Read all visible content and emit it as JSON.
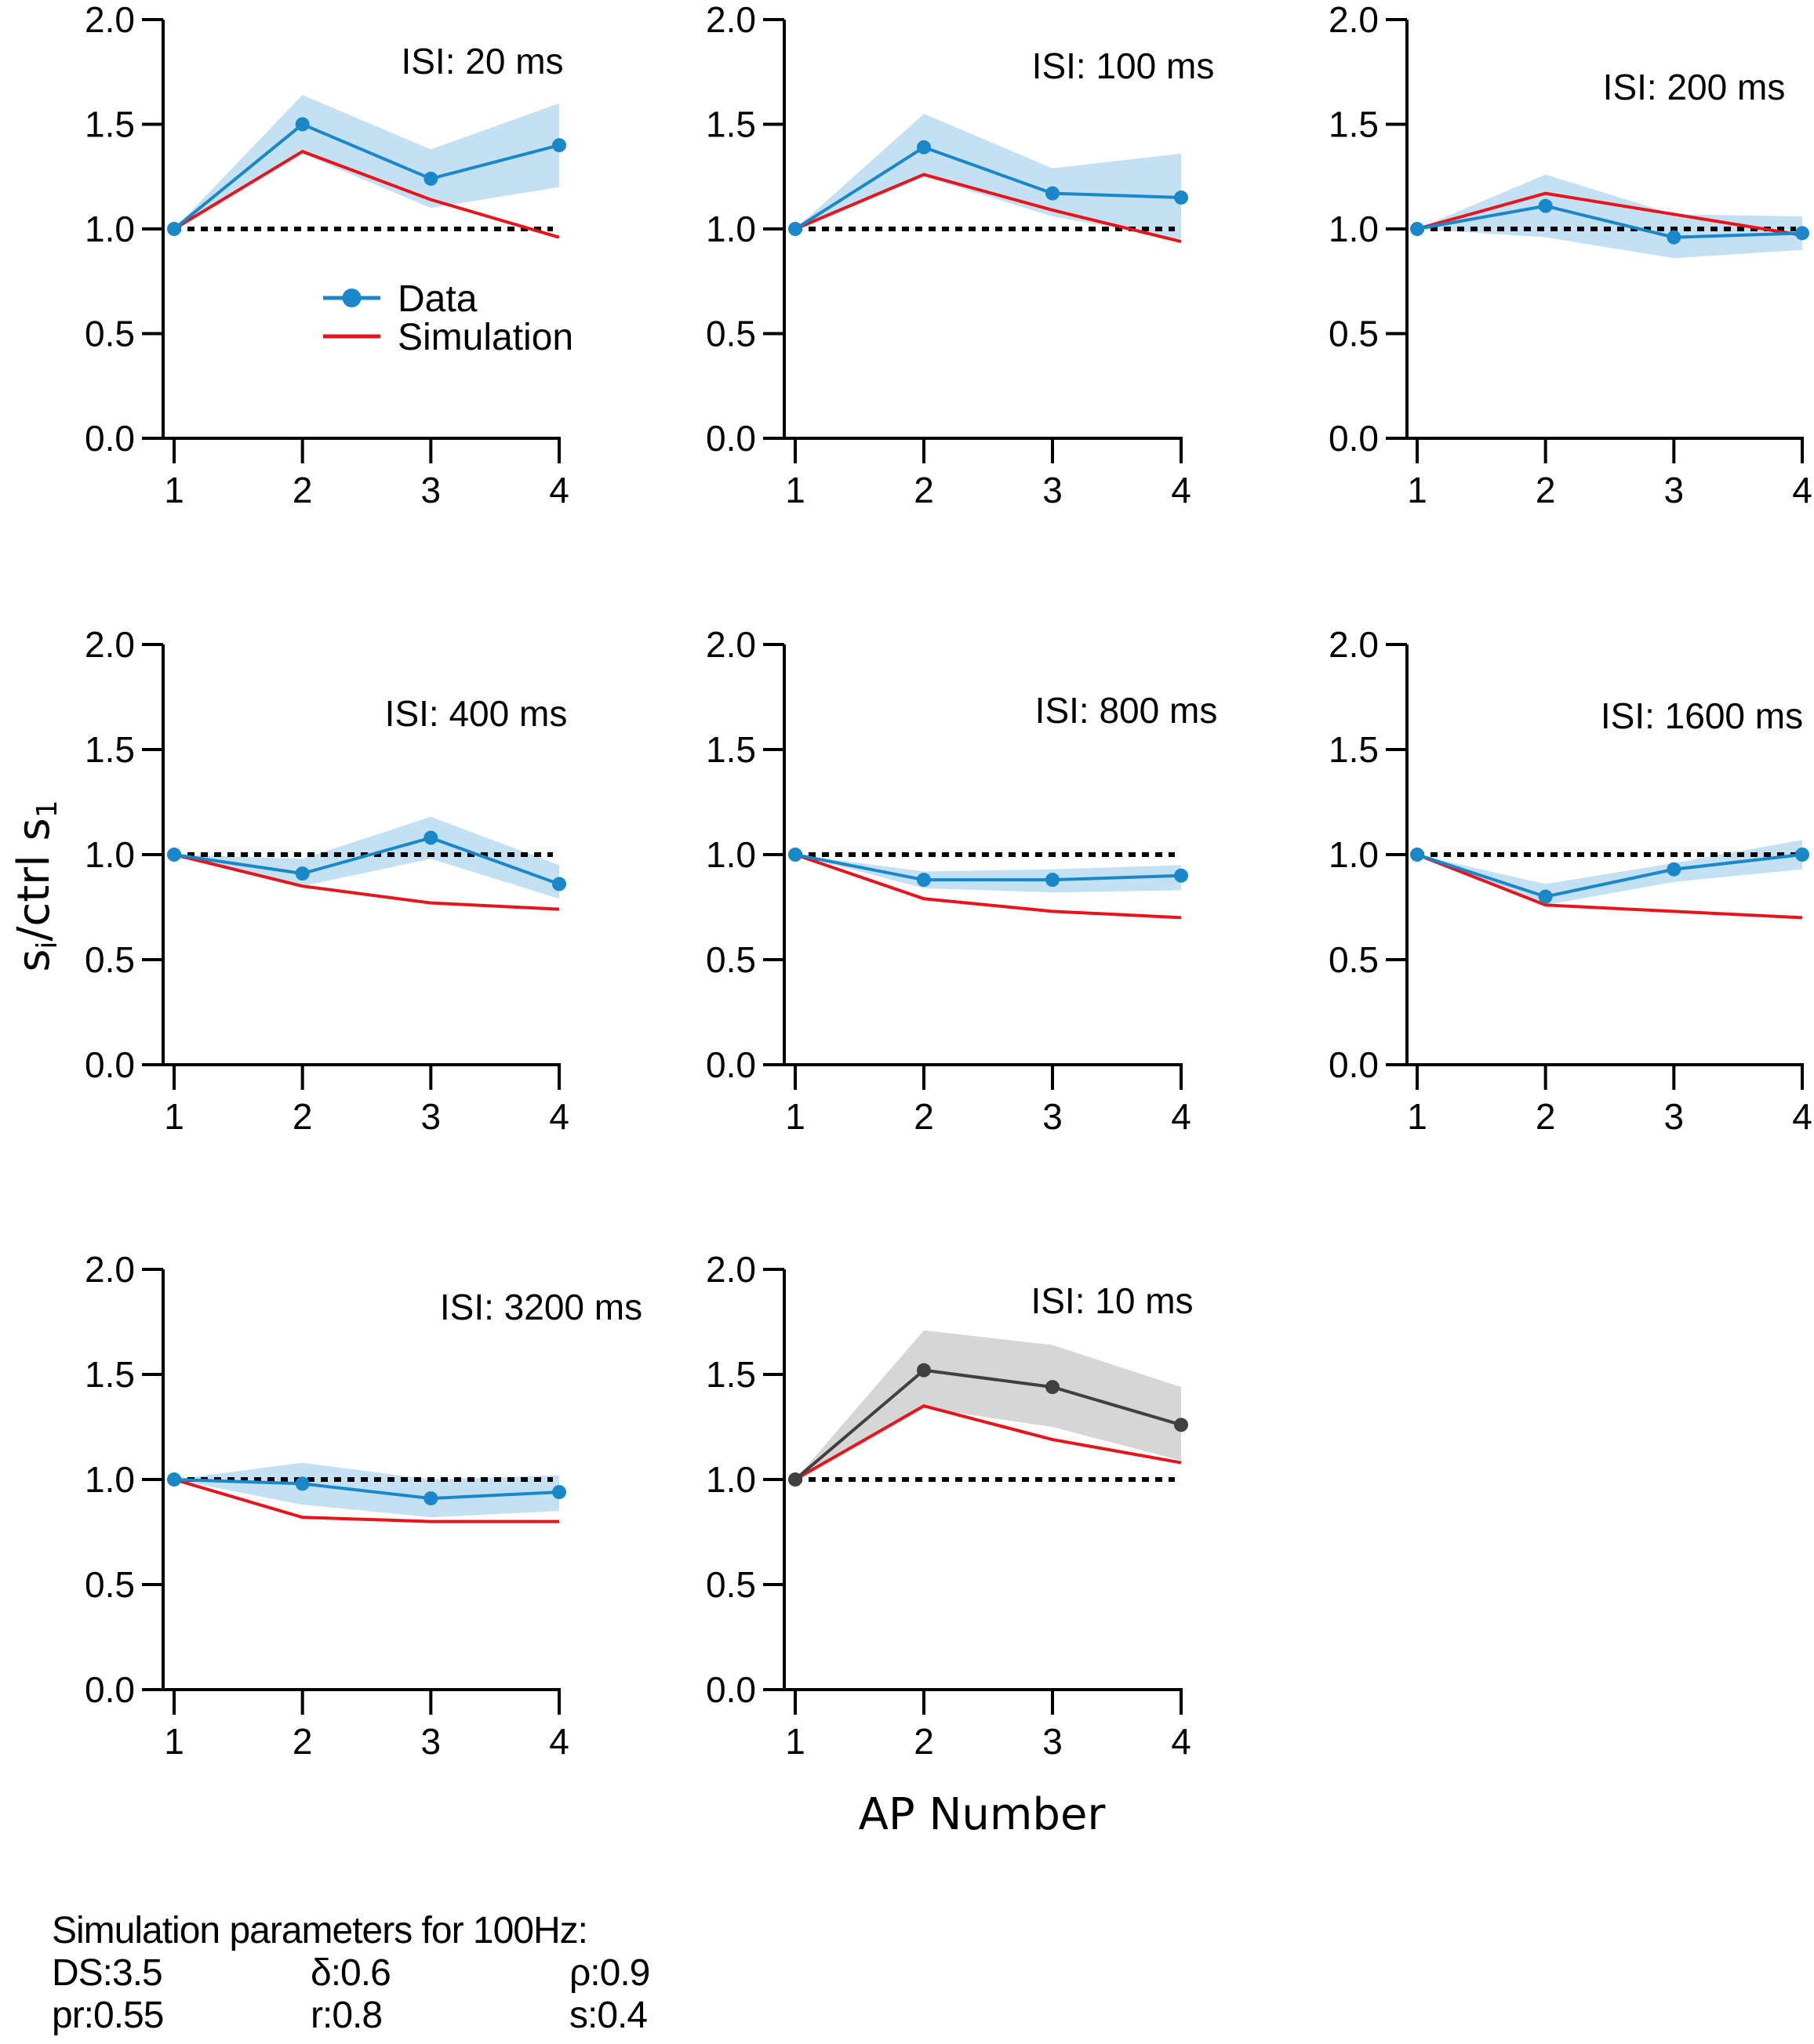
{
  "chart_data": {
    "type": "line",
    "layout": "small-multiples grid, 3 columns x 3 rows (8 panels)",
    "xlabel": "AP Number",
    "ylabel": "s_i/ctrl s_1",
    "ylabel_parts": {
      "base1": "s",
      "sub1": "i",
      "mid": "/ctrl s",
      "sub2": "1"
    },
    "x": [
      1,
      2,
      3,
      4
    ],
    "x_tick_labels": [
      "1",
      "2",
      "3",
      "4"
    ],
    "ylim": [
      0,
      2.0
    ],
    "y_ticks": [
      0.0,
      0.5,
      1.0,
      1.5,
      2.0
    ],
    "y_tick_labels": [
      "0.0",
      "0.5",
      "1.0",
      "1.5",
      "2.0"
    ],
    "reference_line": {
      "y": 1.0,
      "style": "dotted",
      "color": "#000000"
    },
    "grid": false,
    "legend": {
      "placement": "inside first panel, center-right",
      "entries": [
        {
          "label": "Data",
          "color": "#1a87c9",
          "marker": "circle"
        },
        {
          "label": "Simulation",
          "color": "#e8141b",
          "marker": "none"
        }
      ]
    },
    "colors": {
      "data": "#1a87c9",
      "data_band": "#c3e1f2",
      "sim": "#e8141b",
      "data_alt": "#404040",
      "data_band_alt": "#d6d6d6"
    },
    "panels": [
      {
        "title": "ISI: 20 ms",
        "color_scheme": "blue",
        "data": [
          1.0,
          1.5,
          1.24,
          1.4
        ],
        "band_upper": [
          1.0,
          1.64,
          1.38,
          1.6
        ],
        "band_lower": [
          1.0,
          1.36,
          1.1,
          1.2
        ],
        "simulation": [
          1.0,
          1.37,
          1.14,
          0.96
        ]
      },
      {
        "title": "ISI: 100 ms",
        "color_scheme": "blue",
        "data": [
          1.0,
          1.39,
          1.17,
          1.15
        ],
        "band_upper": [
          1.0,
          1.55,
          1.29,
          1.36
        ],
        "band_lower": [
          1.0,
          1.25,
          1.06,
          0.95
        ],
        "simulation": [
          1.0,
          1.26,
          1.09,
          0.94
        ]
      },
      {
        "title": "ISI: 200 ms",
        "color_scheme": "blue",
        "data": [
          1.0,
          1.11,
          0.96,
          0.98
        ],
        "band_upper": [
          1.0,
          1.26,
          1.07,
          1.06
        ],
        "band_lower": [
          1.0,
          0.96,
          0.86,
          0.9
        ],
        "simulation": [
          1.0,
          1.17,
          1.07,
          0.97
        ]
      },
      {
        "title": "ISI: 400 ms",
        "color_scheme": "blue",
        "data": [
          1.0,
          0.91,
          1.08,
          0.86
        ],
        "band_upper": [
          1.0,
          0.98,
          1.18,
          0.95
        ],
        "band_lower": [
          1.0,
          0.85,
          0.98,
          0.79
        ],
        "simulation": [
          1.0,
          0.85,
          0.77,
          0.74
        ]
      },
      {
        "title": "ISI: 800 ms",
        "color_scheme": "blue",
        "data": [
          1.0,
          0.88,
          0.88,
          0.9
        ],
        "band_upper": [
          1.0,
          0.92,
          0.93,
          0.95
        ],
        "band_lower": [
          1.0,
          0.84,
          0.82,
          0.83
        ],
        "simulation": [
          1.0,
          0.79,
          0.73,
          0.7
        ]
      },
      {
        "title": "ISI: 1600 ms",
        "color_scheme": "blue",
        "data": [
          1.0,
          0.8,
          0.93,
          1.0
        ],
        "band_upper": [
          1.0,
          0.86,
          0.96,
          1.07
        ],
        "band_lower": [
          1.0,
          0.76,
          0.87,
          0.93
        ],
        "simulation": [
          1.0,
          0.76,
          0.73,
          0.7
        ]
      },
      {
        "title": "ISI: 3200 ms",
        "color_scheme": "blue",
        "data": [
          1.0,
          0.98,
          0.91,
          0.94
        ],
        "band_upper": [
          1.0,
          1.08,
          1.0,
          1.02
        ],
        "band_lower": [
          1.0,
          0.88,
          0.82,
          0.85
        ],
        "simulation": [
          1.0,
          0.82,
          0.8,
          0.8
        ]
      },
      {
        "title": "ISI: 10 ms",
        "color_scheme": "gray",
        "data": [
          1.0,
          1.52,
          1.44,
          1.26
        ],
        "band_upper": [
          1.0,
          1.71,
          1.64,
          1.44
        ],
        "band_lower": [
          1.0,
          1.34,
          1.25,
          1.09
        ],
        "simulation": [
          1.0,
          1.35,
          1.19,
          1.08
        ]
      }
    ]
  },
  "parameters": {
    "heading": "Simulation parameters for 100Hz:",
    "rows": [
      [
        "DS:3.5",
        "δ:0.6",
        "ρ:0.9"
      ],
      [
        "pr:0.55",
        "r:0.8",
        "s:0.4"
      ]
    ]
  }
}
